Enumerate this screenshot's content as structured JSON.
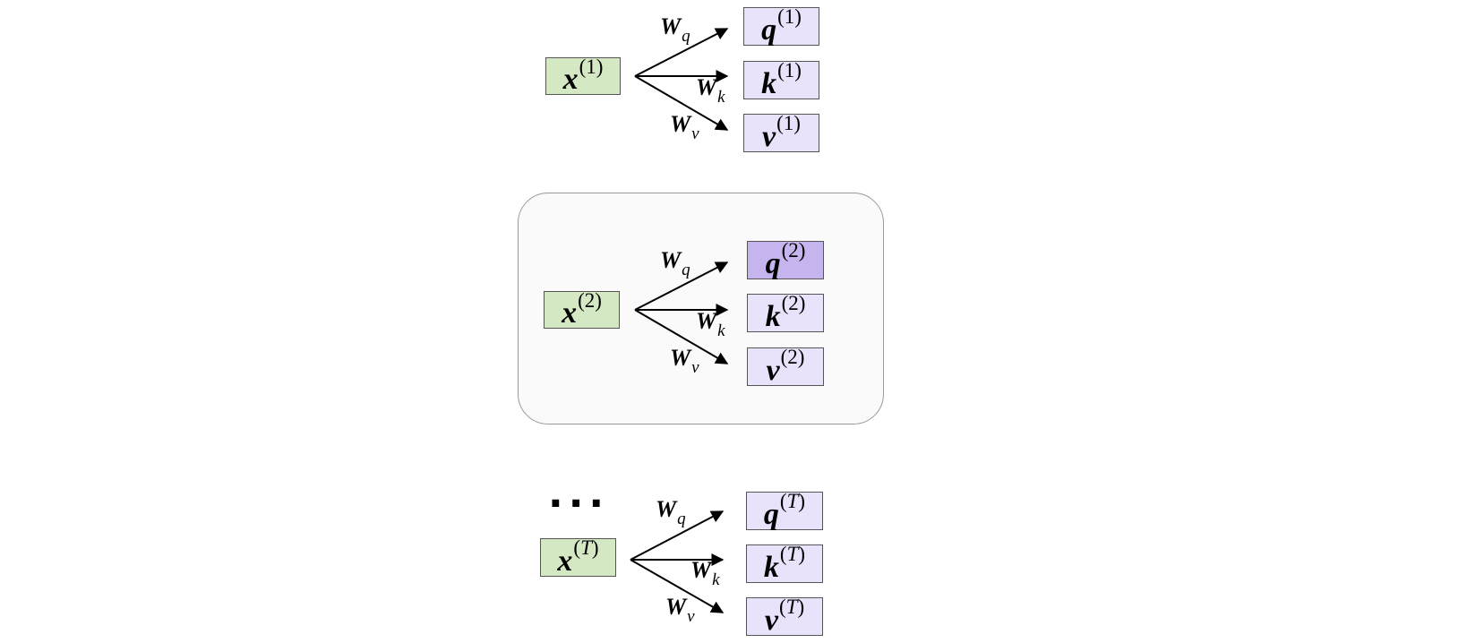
{
  "groups": [
    {
      "input": {
        "symbol": "x",
        "index": "1"
      },
      "weights": {
        "q": {
          "symbol": "W",
          "sub": "q"
        },
        "k": {
          "symbol": "W",
          "sub": "k"
        },
        "v": {
          "symbol": "W",
          "sub": "v"
        }
      },
      "outputs": [
        {
          "symbol": "q",
          "index": "1"
        },
        {
          "symbol": "k",
          "index": "1"
        },
        {
          "symbol": "v",
          "index": "1"
        }
      ]
    },
    {
      "input": {
        "symbol": "x",
        "index": "2"
      },
      "weights": {
        "q": {
          "symbol": "W",
          "sub": "q"
        },
        "k": {
          "symbol": "W",
          "sub": "k"
        },
        "v": {
          "symbol": "W",
          "sub": "v"
        }
      },
      "outputs": [
        {
          "symbol": "q",
          "index": "2"
        },
        {
          "symbol": "k",
          "index": "2"
        },
        {
          "symbol": "v",
          "index": "2"
        }
      ]
    },
    {
      "input": {
        "symbol": "x",
        "index": "T"
      },
      "weights": {
        "q": {
          "symbol": "W",
          "sub": "q"
        },
        "k": {
          "symbol": "W",
          "sub": "k"
        },
        "v": {
          "symbol": "W",
          "sub": "v"
        }
      },
      "outputs": [
        {
          "symbol": "q",
          "index": "T"
        },
        {
          "symbol": "k",
          "index": "T"
        },
        {
          "symbol": "v",
          "index": "T"
        }
      ]
    }
  ],
  "ellipsis": "...",
  "colors": {
    "input_fill": "#d5e8c4",
    "output_fill": "#e8e2fb",
    "highlight_fill": "#c6b4ee",
    "panel_fill": "#fafafa"
  }
}
